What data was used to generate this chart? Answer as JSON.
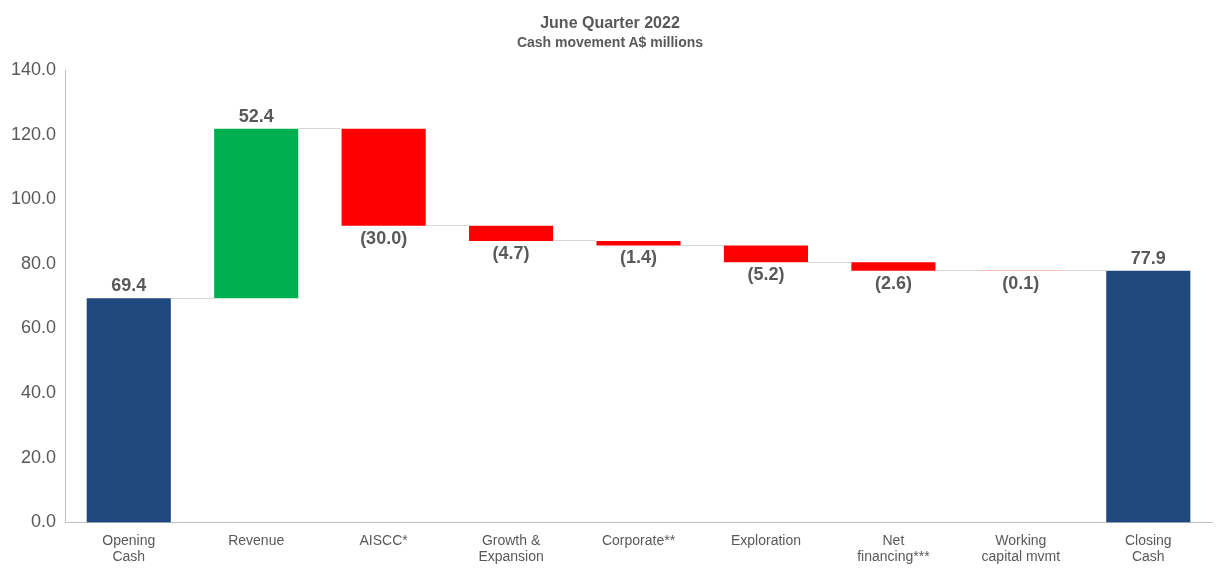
{
  "chart_data": {
    "type": "bar",
    "title": "June Quarter 2022",
    "subtitle": "Cash movement A$ millions",
    "categories": [
      "Opening\nCash",
      "Revenue",
      "AISCC*",
      "Growth &\nExpansion",
      "Corporate**",
      "Exploration",
      "Net\nfinancing***",
      "Working\ncapital mvmt",
      "Closing\nCash"
    ],
    "values": [
      69.4,
      52.4,
      -30.0,
      -4.7,
      -1.4,
      -5.2,
      -2.6,
      -0.1,
      77.9
    ],
    "base": [
      0,
      69.4,
      121.8,
      91.8,
      87.1,
      85.7,
      80.5,
      77.9,
      0
    ],
    "colors": [
      "#1f497d",
      "#00b050",
      "#ff0000",
      "#ff0000",
      "#ff0000",
      "#ff0000",
      "#ff0000",
      "#ff0000",
      "#1f497d"
    ],
    "value_labels": [
      "69.4",
      "52.4",
      "(30.0)",
      "(4.7)",
      "(1.4)",
      "(5.2)",
      "(2.6)",
      "(0.1)",
      "77.9"
    ],
    "ylim": [
      0,
      140
    ],
    "yticks": [
      {
        "value": 0,
        "label": "0.0"
      },
      {
        "value": 20,
        "label": "20.0"
      },
      {
        "value": 40,
        "label": "40.0"
      },
      {
        "value": 60,
        "label": "60.0"
      },
      {
        "value": 80,
        "label": "80.0"
      },
      {
        "value": 100,
        "label": "100.0"
      },
      {
        "value": 120,
        "label": "120.0"
      },
      {
        "value": 140,
        "label": "140.0"
      }
    ],
    "grid": false,
    "legend": false
  }
}
